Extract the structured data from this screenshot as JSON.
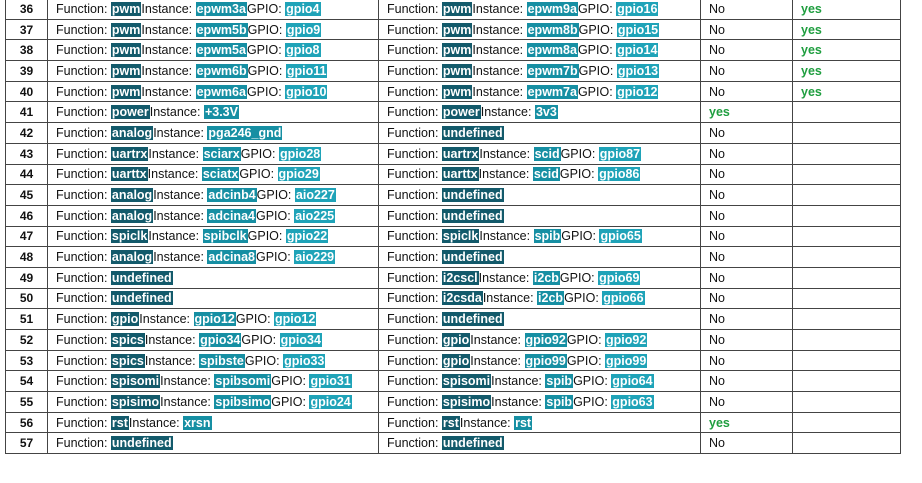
{
  "labels": {
    "function": "Function:",
    "instance": "Instance:",
    "gpio": "GPIO:"
  },
  "rows": [
    {
      "pin": "36",
      "a": {
        "function": "pwm",
        "instance": "epwm3a",
        "gpio": "gpio4"
      },
      "b": {
        "function": "pwm",
        "instance": "epwm9a",
        "gpio": "gpio16"
      },
      "c": "No",
      "d": "yes"
    },
    {
      "pin": "37",
      "a": {
        "function": "pwm",
        "instance": "epwm5b",
        "gpio": "gpio9"
      },
      "b": {
        "function": "pwm",
        "instance": "epwm8b",
        "gpio": "gpio15"
      },
      "c": "No",
      "d": "yes"
    },
    {
      "pin": "38",
      "a": {
        "function": "pwm",
        "instance": "epwm5a",
        "gpio": "gpio8"
      },
      "b": {
        "function": "pwm",
        "instance": "epwm8a",
        "gpio": "gpio14"
      },
      "c": "No",
      "d": "yes"
    },
    {
      "pin": "39",
      "a": {
        "function": "pwm",
        "instance": "epwm6b",
        "gpio": "gpio11"
      },
      "b": {
        "function": "pwm",
        "instance": "epwm7b",
        "gpio": "gpio13"
      },
      "c": "No",
      "d": "yes"
    },
    {
      "pin": "40",
      "a": {
        "function": "pwm",
        "instance": "epwm6a",
        "gpio": "gpio10"
      },
      "b": {
        "function": "pwm",
        "instance": "epwm7a",
        "gpio": "gpio12"
      },
      "c": "No",
      "d": "yes"
    },
    {
      "pin": "41",
      "a": {
        "function": "power",
        "instance": "+3.3V"
      },
      "b": {
        "function": "power",
        "instance": "3v3"
      },
      "c": "yes"
    },
    {
      "pin": "42",
      "a": {
        "function": "analog",
        "instance": "pga246_gnd"
      },
      "b": {
        "function": "undefined"
      },
      "c": "No"
    },
    {
      "pin": "43",
      "a": {
        "function": "uartrx",
        "instance": "sciarx",
        "gpio": "gpio28"
      },
      "b": {
        "function": "uartrx",
        "instance": "scid",
        "gpio": "gpio87"
      },
      "c": "No"
    },
    {
      "pin": "44",
      "a": {
        "function": "uarttx",
        "instance": "sciatx",
        "gpio": "gpio29"
      },
      "b": {
        "function": "uarttx",
        "instance": "scid",
        "gpio": "gpio86"
      },
      "c": "No"
    },
    {
      "pin": "45",
      "a": {
        "function": "analog",
        "instance": "adcinb4",
        "gpio": "aio227"
      },
      "b": {
        "function": "undefined"
      },
      "c": "No"
    },
    {
      "pin": "46",
      "a": {
        "function": "analog",
        "instance": "adcina4",
        "gpio": "aio225"
      },
      "b": {
        "function": "undefined"
      },
      "c": "No"
    },
    {
      "pin": "47",
      "a": {
        "function": "spiclk",
        "instance": "spibclk",
        "gpio": "gpio22"
      },
      "b": {
        "function": "spiclk",
        "instance": "spib",
        "gpio": "gpio65"
      },
      "c": "No"
    },
    {
      "pin": "48",
      "a": {
        "function": "analog",
        "instance": "adcina8",
        "gpio": "aio229"
      },
      "b": {
        "function": "undefined"
      },
      "c": "No"
    },
    {
      "pin": "49",
      "a": {
        "function": "undefined"
      },
      "b": {
        "function": "i2cscl",
        "instance": "i2cb",
        "gpio": "gpio69"
      },
      "c": "No"
    },
    {
      "pin": "50",
      "a": {
        "function": "undefined"
      },
      "b": {
        "function": "i2csda",
        "instance": "i2cb",
        "gpio": "gpio66"
      },
      "c": "No"
    },
    {
      "pin": "51",
      "a": {
        "function": "gpio",
        "instance": "gpio12",
        "gpio": "gpio12"
      },
      "b": {
        "function": "undefined"
      },
      "c": "No"
    },
    {
      "pin": "52",
      "a": {
        "function": "spics",
        "instance": "gpio34",
        "gpio": "gpio34"
      },
      "b": {
        "function": "gpio",
        "instance": "gpio92",
        "gpio": "gpio92"
      },
      "c": "No"
    },
    {
      "pin": "53",
      "a": {
        "function": "spics",
        "instance": "spibste",
        "gpio": "gpio33"
      },
      "b": {
        "function": "gpio",
        "instance": "gpio99",
        "gpio": "gpio99"
      },
      "c": "No"
    },
    {
      "pin": "54",
      "a": {
        "function": "spisomi",
        "instance": "spibsomi",
        "gpio": "gpio31"
      },
      "b": {
        "function": "spisomi",
        "instance": "spib",
        "gpio": "gpio64"
      },
      "c": "No"
    },
    {
      "pin": "55",
      "a": {
        "function": "spisimo",
        "instance": "spibsimo",
        "gpio": "gpio24"
      },
      "b": {
        "function": "spisimo",
        "instance": "spib",
        "gpio": "gpio63"
      },
      "c": "No"
    },
    {
      "pin": "56",
      "a": {
        "function": "rst",
        "instance": "xrsn"
      },
      "b": {
        "function": "rst",
        "instance": "rst"
      },
      "c": "yes"
    },
    {
      "pin": "57",
      "a": {
        "function": "undefined"
      },
      "b": {
        "function": "undefined"
      },
      "c": "No"
    }
  ]
}
